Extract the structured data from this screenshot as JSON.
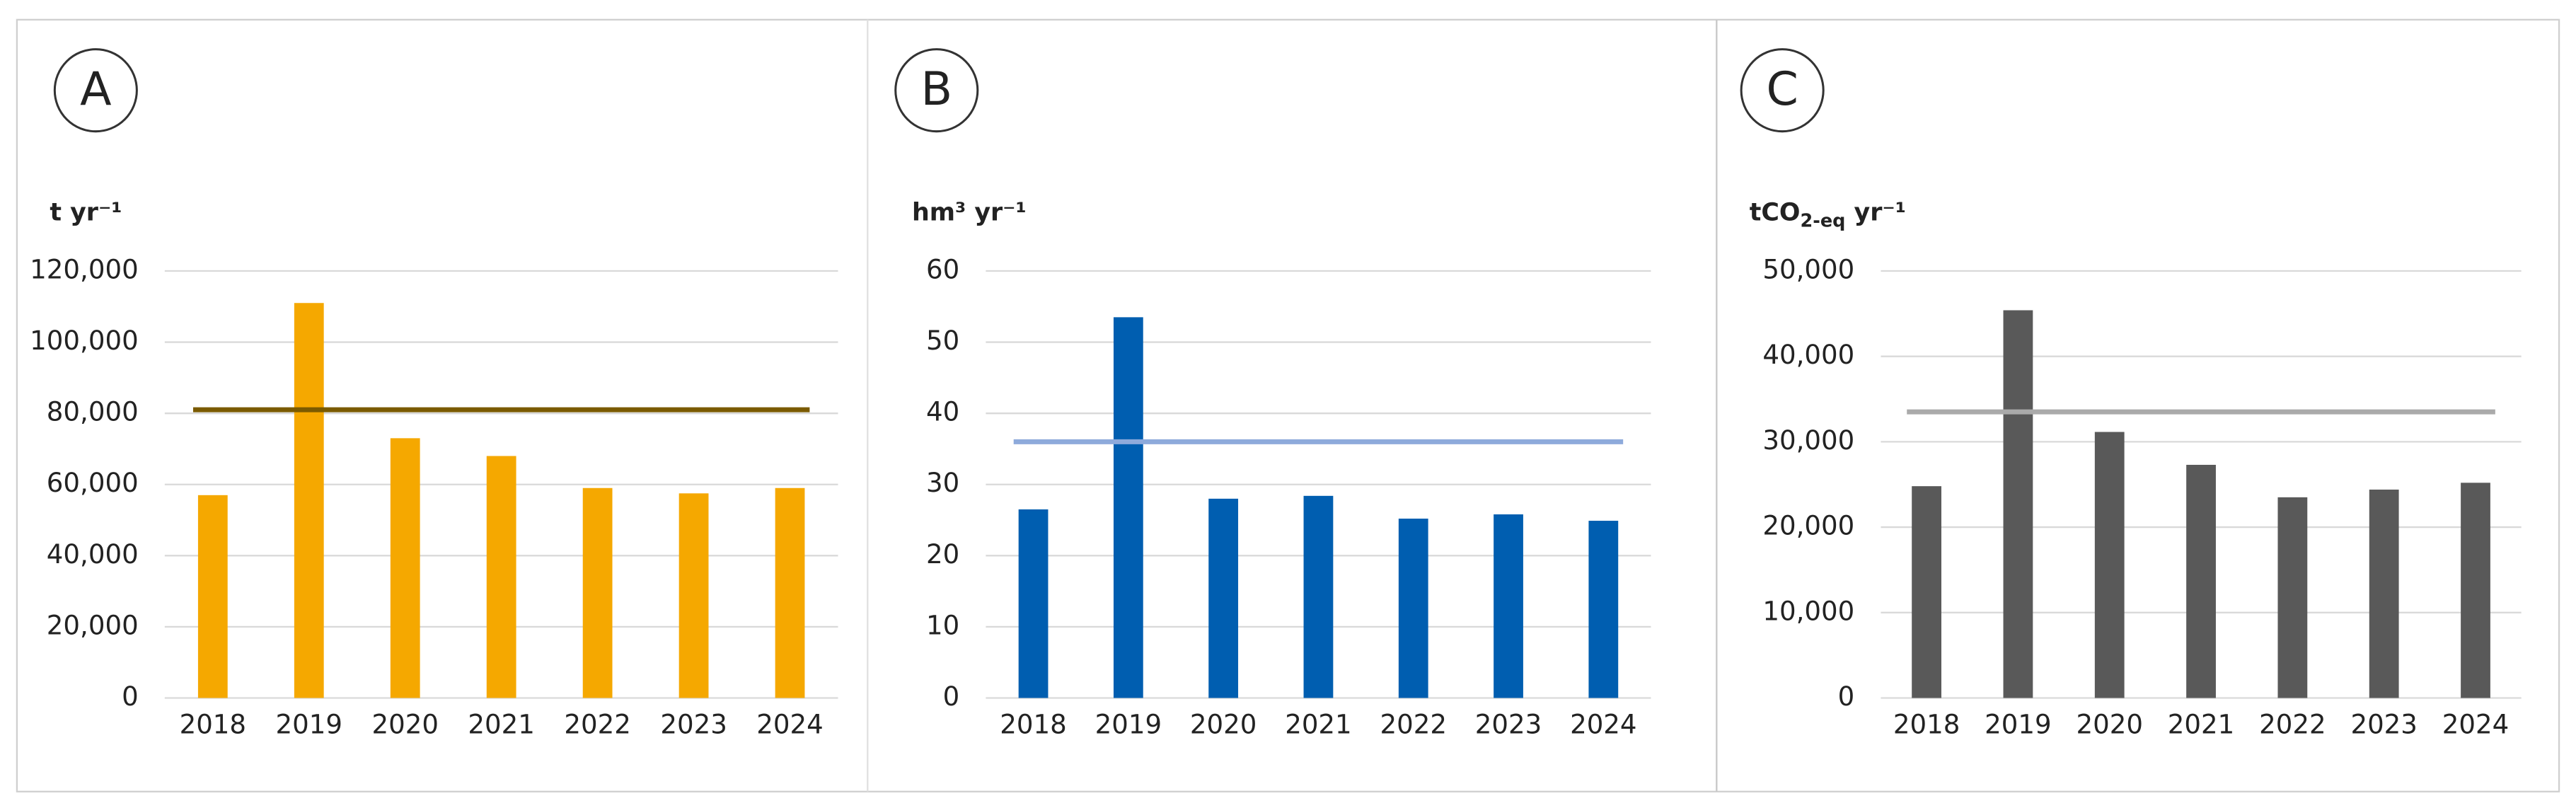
{
  "chart_data": [
    {
      "type": "bar",
      "panel": "A",
      "ylabel": [
        "t yr⁻¹"
      ],
      "categories": [
        "2018",
        "2019",
        "2020",
        "2021",
        "2022",
        "2023",
        "2024"
      ],
      "values": [
        57000,
        111000,
        73000,
        68000,
        59000,
        57500,
        59000
      ],
      "color": "#f5a800",
      "hline": {
        "value": 81000,
        "color": "#7a5a00"
      },
      "ylim": [
        0,
        120000
      ],
      "yticks": [
        0,
        {
          "value": 20000,
          "label": "20,000"
        },
        {
          "value": 40000,
          "label": "40,000"
        },
        {
          "value": 60000,
          "label": "60,000"
        },
        {
          "value": 80000,
          "label": "80,000"
        },
        {
          "value": 100000,
          "label": "100,000"
        },
        {
          "value": 120000,
          "label": "120,000"
        }
      ],
      "grid": true
    },
    {
      "type": "bar",
      "panel": "B",
      "ylabel": [
        "hm³ yr⁻¹"
      ],
      "categories": [
        "2018",
        "2019",
        "2020",
        "2021",
        "2022",
        "2023",
        "2024"
      ],
      "values": [
        26.5,
        53.5,
        28,
        28.4,
        25.2,
        25.8,
        24.9
      ],
      "color": "#005eb0",
      "hline": {
        "value": 36,
        "color": "#8eaadb"
      },
      "ylim": [
        0,
        60
      ],
      "yticks": [
        0,
        10,
        20,
        30,
        40,
        50,
        60
      ],
      "grid": true
    },
    {
      "type": "bar",
      "panel": "C",
      "ylabel": [
        "tCO",
        "2-eq",
        " yr⁻¹"
      ],
      "categories": [
        "2018",
        "2019",
        "2020",
        "2021",
        "2022",
        "2023",
        "2024"
      ],
      "values": [
        24800,
        45400,
        31150,
        27300,
        23500,
        24400,
        25200
      ],
      "color": "#595959",
      "hline": {
        "value": 33500,
        "color": "#aaaaaa"
      },
      "ylim": [
        0,
        50000
      ],
      "yticks": [
        0,
        {
          "value": 10000,
          "label": "10,000"
        },
        {
          "value": 20000,
          "label": "20,000"
        },
        {
          "value": 30000,
          "label": "30,000"
        },
        {
          "value": 40000,
          "label": "40,000"
        },
        {
          "value": 50000,
          "label": "50,000"
        }
      ],
      "grid": true
    }
  ]
}
